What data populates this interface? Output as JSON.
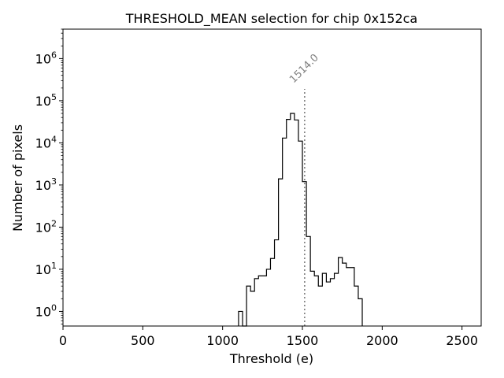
{
  "chart_data": {
    "type": "histogram",
    "title": "THRESHOLD_MEAN selection for chip 0x152ca",
    "xlabel": "Threshold (e)",
    "ylabel": "Number of pixels",
    "xlim": [
      0,
      2620
    ],
    "ylim": [
      0.45,
      5000000
    ],
    "yscale": "log",
    "grid": false,
    "xticks": [
      0,
      500,
      1000,
      1500,
      2000,
      2500
    ],
    "xtick_labels": [
      "0",
      "500",
      "1000",
      "1500",
      "2000",
      "2500"
    ],
    "yticks": [
      1,
      10,
      100,
      1000,
      10000,
      100000,
      1000000
    ],
    "ytick_base": "10",
    "ytick_exponents": [
      "0",
      "1",
      "2",
      "3",
      "4",
      "5",
      "6"
    ],
    "bin_width": 25,
    "bins": [
      {
        "x": 1112.5,
        "count": 1
      },
      {
        "x": 1137.5,
        "count": 0
      },
      {
        "x": 1162.5,
        "count": 4
      },
      {
        "x": 1187.5,
        "count": 3
      },
      {
        "x": 1212.5,
        "count": 6
      },
      {
        "x": 1237.5,
        "count": 7
      },
      {
        "x": 1262.5,
        "count": 7
      },
      {
        "x": 1287.5,
        "count": 10
      },
      {
        "x": 1312.5,
        "count": 18
      },
      {
        "x": 1337.5,
        "count": 50
      },
      {
        "x": 1362.5,
        "count": 1400
      },
      {
        "x": 1387.5,
        "count": 13000
      },
      {
        "x": 1412.5,
        "count": 36000
      },
      {
        "x": 1437.5,
        "count": 50000
      },
      {
        "x": 1462.5,
        "count": 35000
      },
      {
        "x": 1487.5,
        "count": 11000
      },
      {
        "x": 1512.5,
        "count": 1200
      },
      {
        "x": 1537.5,
        "count": 60
      },
      {
        "x": 1562.5,
        "count": 9
      },
      {
        "x": 1587.5,
        "count": 7
      },
      {
        "x": 1612.5,
        "count": 4
      },
      {
        "x": 1637.5,
        "count": 8
      },
      {
        "x": 1662.5,
        "count": 5
      },
      {
        "x": 1687.5,
        "count": 6
      },
      {
        "x": 1712.5,
        "count": 8
      },
      {
        "x": 1737.5,
        "count": 19
      },
      {
        "x": 1762.5,
        "count": 14
      },
      {
        "x": 1787.5,
        "count": 11
      },
      {
        "x": 1812.5,
        "count": 11
      },
      {
        "x": 1837.5,
        "count": 4
      },
      {
        "x": 1862.5,
        "count": 2
      }
    ],
    "marker": {
      "x": 1514.0,
      "label": "1514.0",
      "color": "#808080"
    },
    "colors": {
      "line": "#000000",
      "marker": "#808080"
    }
  }
}
